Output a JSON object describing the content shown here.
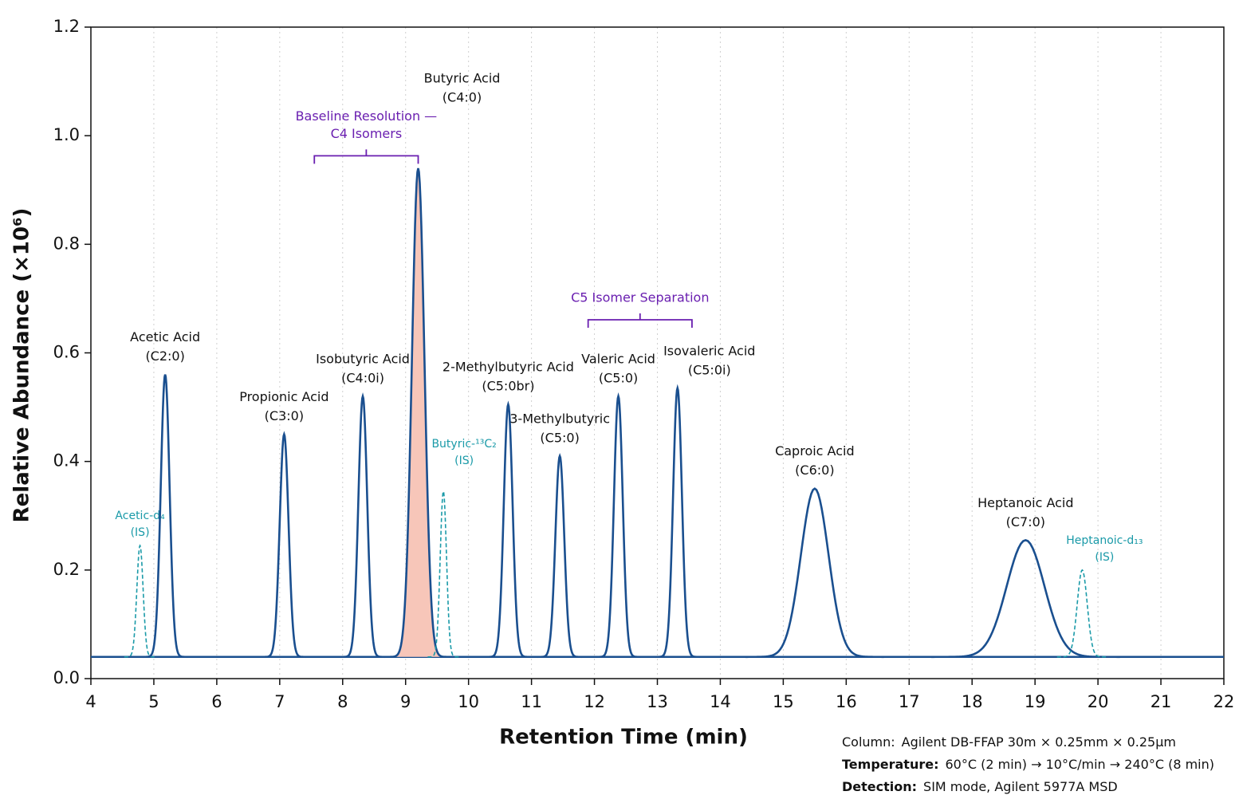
{
  "chart_data": {
    "type": "chromatogram",
    "xlabel": "Retention Time (min)",
    "ylabel": "Relative Abundance (×10⁶)",
    "xlim": [
      4,
      22
    ],
    "ylim": [
      0,
      1.2
    ],
    "xticks": [
      4,
      5,
      6,
      7,
      8,
      9,
      10,
      11,
      12,
      13,
      14,
      15,
      16,
      17,
      18,
      19,
      20,
      21,
      22
    ],
    "yticks": [
      {
        "value": 0,
        "label": "0.0"
      },
      0.2,
      0.4,
      0.6,
      0.8,
      {
        "value": 1,
        "label": "1.0"
      },
      1.2
    ],
    "grid_x": true,
    "baseline": 0.04,
    "color": "#1a4f8f",
    "is_color": "#1a9aa8",
    "highlight_fill": "#f7c6b9",
    "annotation_color": "#6a1fb0",
    "peaks": [
      {
        "label": [
          "Acetic-d₄",
          "(IS)"
        ],
        "kind": "internal_standard",
        "rt": 4.78,
        "height": 0.245,
        "width": 0.05
      },
      {
        "label": [
          "Acetic Acid",
          "(C2:0)"
        ],
        "kind": "analyte",
        "rt": 5.18,
        "height": 0.56,
        "width": 0.07
      },
      {
        "label": [
          "Propionic Acid",
          "(C3:0)"
        ],
        "kind": "analyte",
        "rt": 7.07,
        "height": 0.45,
        "width": 0.07
      },
      {
        "label": [
          "Isobutyric Acid",
          "(C4:0i)"
        ],
        "kind": "analyte",
        "rt": 8.32,
        "height": 0.52,
        "width": 0.07
      },
      {
        "label": [
          "Butyric Acid",
          "(C4:0)"
        ],
        "kind": "analyte",
        "rt": 9.2,
        "height": 0.94,
        "width": 0.1,
        "highlight": true
      },
      {
        "label": [
          "Butyric-¹³C₂",
          "(IS)"
        ],
        "kind": "internal_standard",
        "rt": 9.6,
        "height": 0.345,
        "width": 0.05
      },
      {
        "label": [
          "2-Methylbutyric Acid",
          "(C5:0br)"
        ],
        "kind": "analyte",
        "rt": 10.63,
        "height": 0.505,
        "width": 0.07
      },
      {
        "label": [
          "3-Methylbutyric",
          "(C5:0)"
        ],
        "kind": "analyte",
        "rt": 11.45,
        "height": 0.41,
        "width": 0.07
      },
      {
        "label": [
          "Valeric Acid",
          "(C5:0)"
        ],
        "kind": "analyte",
        "rt": 12.38,
        "height": 0.52,
        "width": 0.07
      },
      {
        "label": [
          "Isovaleric Acid",
          "(C5:0i)"
        ],
        "kind": "analyte",
        "rt": 13.32,
        "height": 0.535,
        "width": 0.07
      },
      {
        "label": [
          "Caproic Acid",
          "(C6:0)"
        ],
        "kind": "analyte",
        "rt": 15.5,
        "height": 0.35,
        "width": 0.22
      },
      {
        "label": [
          "Heptanoic Acid",
          "(C7:0)"
        ],
        "kind": "analyte",
        "rt": 18.85,
        "height": 0.255,
        "width": 0.3
      },
      {
        "label": [
          "Heptanoic-d₁₃",
          "(IS)"
        ],
        "kind": "internal_standard",
        "rt": 19.75,
        "height": 0.2,
        "width": 0.08
      }
    ],
    "annotations": [
      {
        "text": [
          "Baseline Resolution —",
          "C4 Isomers"
        ],
        "x": [
          7.55,
          9.2
        ],
        "y": 0.963
      },
      {
        "text": [
          "C5 Isomer Separation"
        ],
        "x": [
          11.9,
          13.55
        ],
        "y": 0.661
      }
    ],
    "notes": [
      {
        "label": "Column:",
        "text": "Agilent DB-FFAP  30m × 0.25mm × 0.25μm",
        "bold": false
      },
      {
        "label": "Temperature:",
        "text": "60°C (2 min) → 10°C/min → 240°C (8 min)",
        "bold": true
      },
      {
        "label": "Detection:",
        "text": "SIM mode, Agilent 5977A MSD",
        "bold": true
      }
    ]
  }
}
